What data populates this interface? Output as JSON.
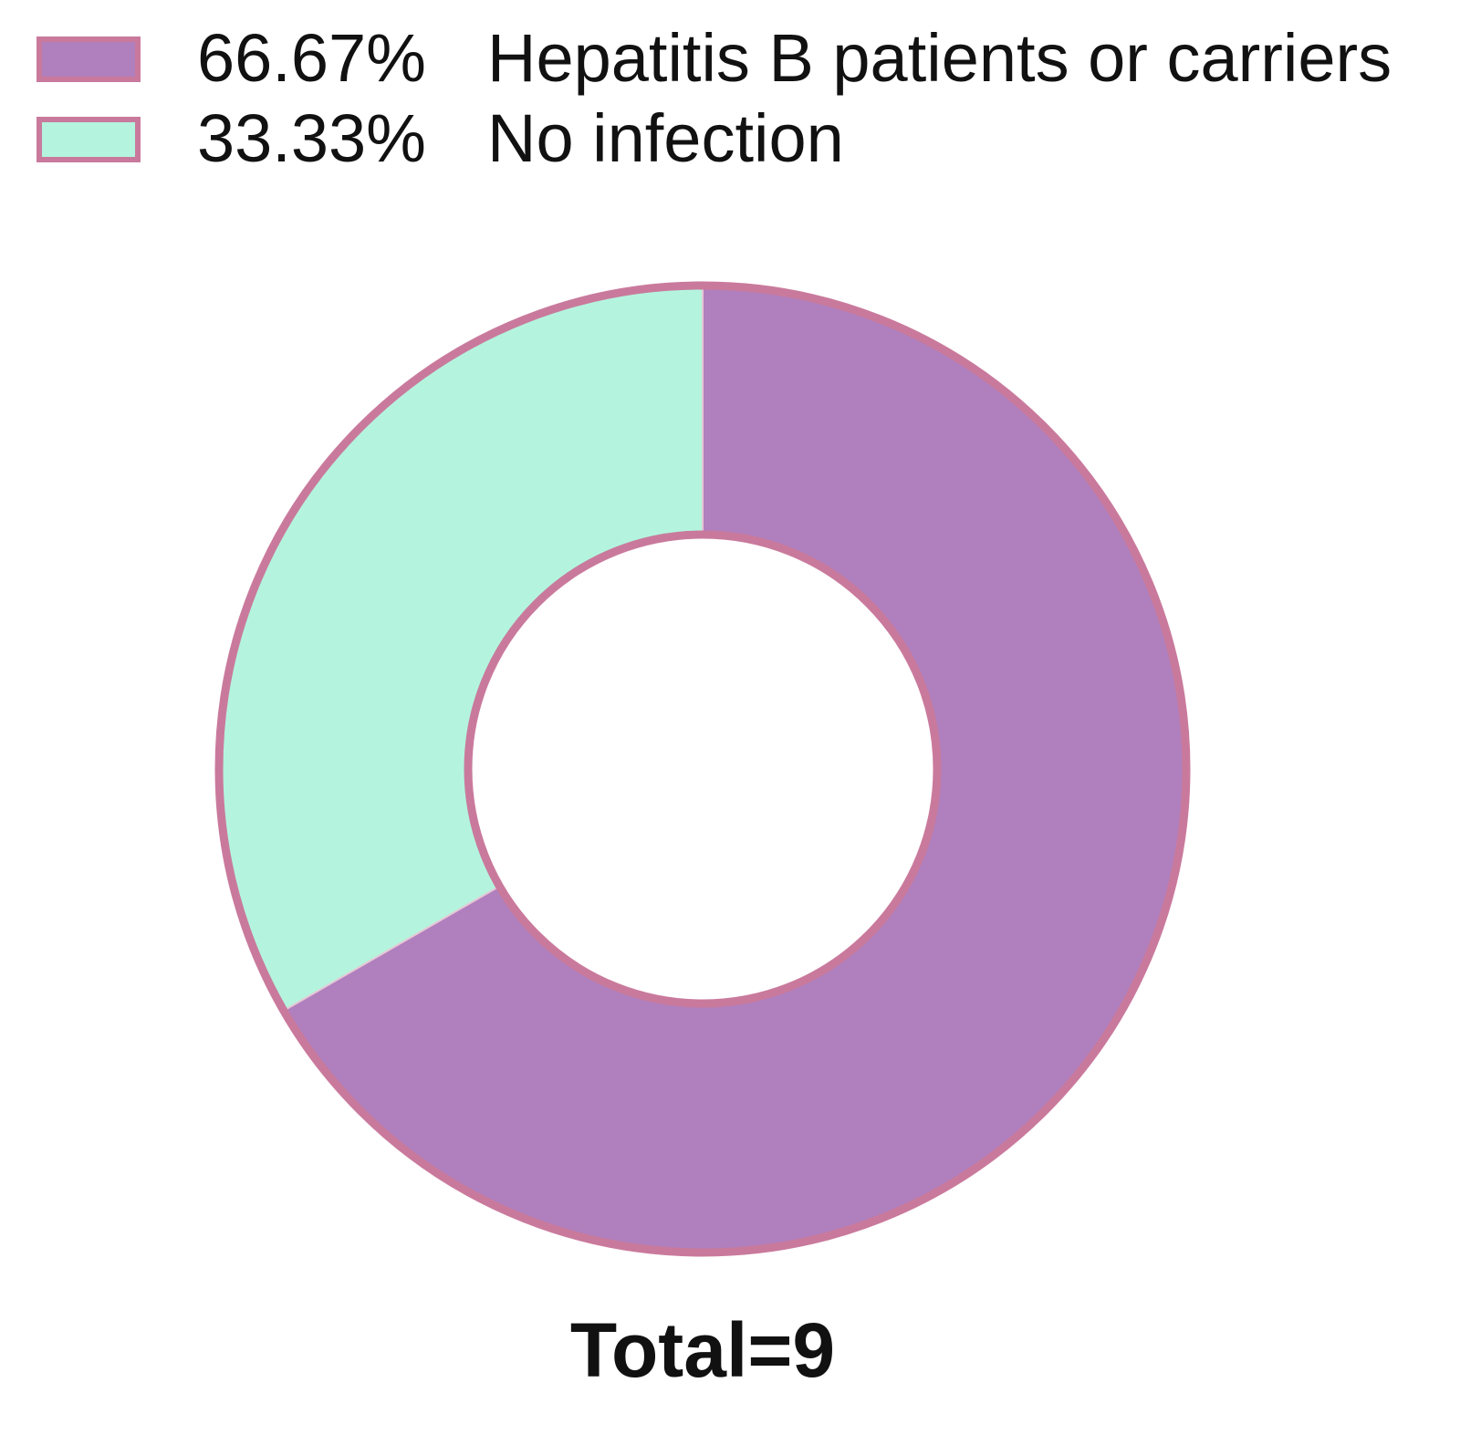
{
  "chart_data": {
    "type": "pie",
    "style": "donut",
    "slices": [
      {
        "label": "Hepatitis B patients or carriers",
        "percent_label": "66.67%",
        "value": 66.67,
        "color": "#b07fbd"
      },
      {
        "label": "No infection",
        "percent_label": "33.33%",
        "value": 33.33,
        "color": "#b4f4de"
      }
    ],
    "edge_color": "#c97a9c",
    "total_label": "Total=9",
    "legend_position": "top-left",
    "start_angle": "12 o'clock",
    "direction": "clockwise"
  }
}
